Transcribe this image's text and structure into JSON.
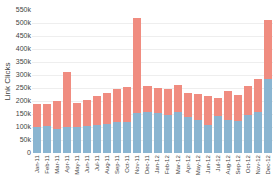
{
  "chart_data": {
    "type": "bar",
    "stacked": true,
    "ylabel": "Link Clicks",
    "categories": [
      "Jan-11",
      "Feb-11",
      "Mar-11",
      "Apr-11",
      "May-11",
      "Jun-11",
      "Jul-11",
      "Aug-11",
      "Sep-11",
      "Oct-11",
      "Nov-11",
      "Dec-11",
      "Jan-12",
      "Feb-12",
      "Mar-12",
      "Apr-12",
      "May-12",
      "Jun-12",
      "Jul-12",
      "Aug-12",
      "Sep-12",
      "Oct-12",
      "Nov-12",
      "Dec-12"
    ],
    "series": [
      {
        "color": "#8ab5d1",
        "values": [
          100000,
          105000,
          92000,
          100000,
          100000,
          105000,
          108000,
          112000,
          118000,
          120000,
          152000,
          158000,
          152000,
          148000,
          158000,
          138000,
          128000,
          108000,
          142000,
          128000,
          122000,
          148000,
          158000,
          285000
        ]
      },
      {
        "color": "#f08c80",
        "values": [
          88000,
          82000,
          108000,
          210000,
          92000,
          98000,
          112000,
          118000,
          128000,
          132000,
          368000,
          98000,
          98000,
          98000,
          102000,
          92000,
          98000,
          112000,
          68000,
          112000,
          102000,
          108000,
          128000,
          228000
        ]
      }
    ],
    "ylim": [
      0,
      550000
    ],
    "yticks": [
      0,
      {
        "value": 50000,
        "label": "50k"
      },
      {
        "value": 100000,
        "label": "100k"
      },
      {
        "value": 150000,
        "label": "150k"
      },
      {
        "value": 200000,
        "label": "200k"
      },
      {
        "value": 250000,
        "label": "250k"
      },
      {
        "value": 300000,
        "label": "300k"
      },
      {
        "value": 350000,
        "label": "350k"
      },
      {
        "value": 400000,
        "label": "400k"
      },
      {
        "value": 450000,
        "label": "450k"
      },
      {
        "value": 500000,
        "label": "500k"
      },
      {
        "value": 550000,
        "label": "550k"
      }
    ],
    "grid": true
  }
}
